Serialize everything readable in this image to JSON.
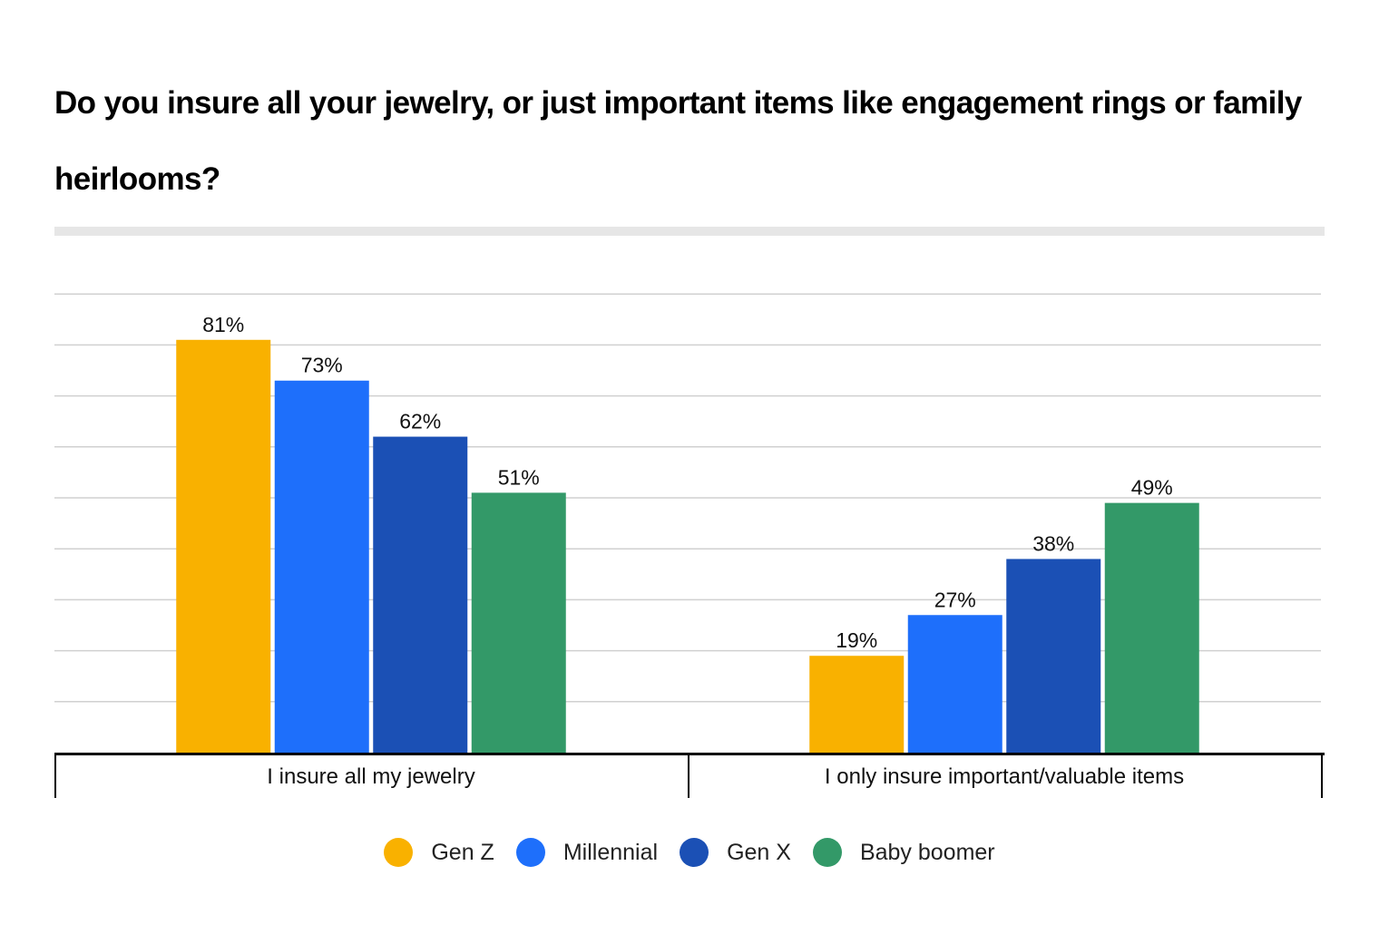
{
  "chart_data": {
    "type": "bar",
    "title": "Do you insure all your jewelry, or just important items like engagement rings or family heirlooms?",
    "categories": [
      "I insure all my jewelry",
      "I only insure important/valuable items"
    ],
    "series": [
      {
        "name": "Gen Z",
        "color": "#f9b100",
        "values": [
          81,
          19
        ],
        "labels": [
          "81%",
          "19%"
        ]
      },
      {
        "name": "Millennial",
        "color": "#1e6ffb",
        "values": [
          73,
          27
        ],
        "labels": [
          "73%",
          "27%"
        ]
      },
      {
        "name": "Gen X",
        "color": "#1b50b5",
        "values": [
          62,
          38
        ],
        "labels": [
          "62%",
          "38%"
        ]
      },
      {
        "name": "Baby boomer",
        "color": "#339968",
        "values": [
          51,
          49
        ],
        "labels": [
          "51%",
          "49%"
        ]
      }
    ],
    "ylim": [
      0,
      90
    ],
    "grid": true,
    "xlabel": "",
    "ylabel": "",
    "legend_position": "bottom-center",
    "value_unit": "%"
  }
}
